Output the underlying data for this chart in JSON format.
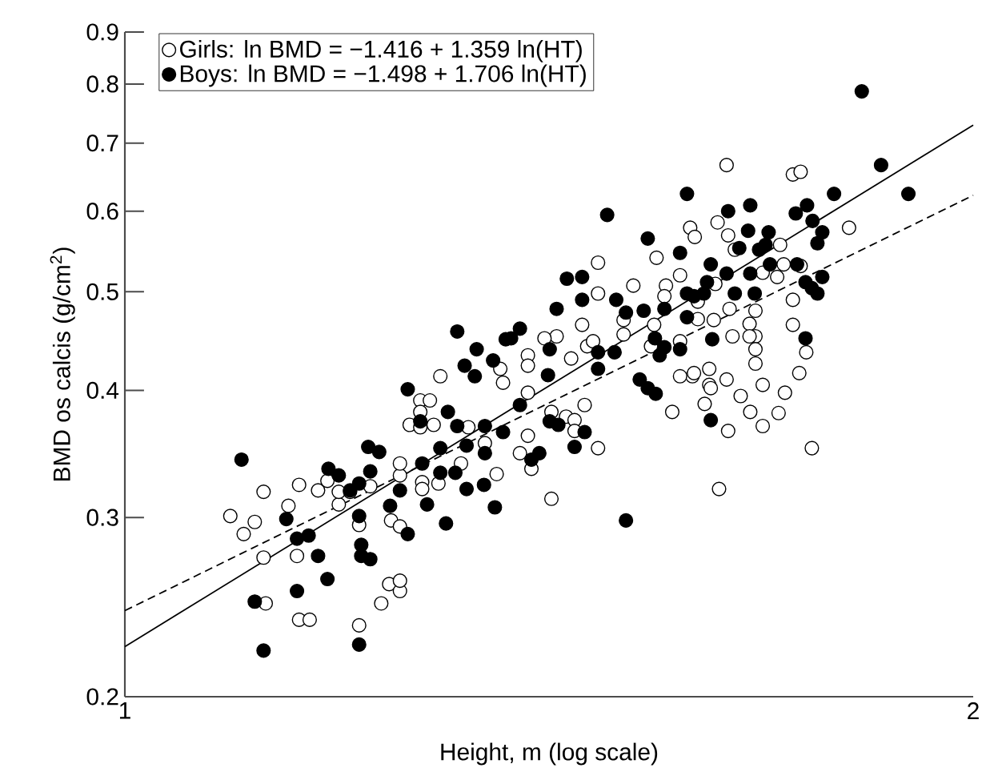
{
  "chart_data": {
    "type": "scatter",
    "xlabel": "Height, m (log scale)",
    "ylabel": "BMD os calcis (g/cm$^{2}$)",
    "log": "xy",
    "xlim": [
      1,
      2
    ],
    "ylim": [
      0.2,
      0.9
    ],
    "xticks": [
      1,
      2
    ],
    "yticks": [
      0.2,
      0.3,
      0.4,
      0.5,
      0.6,
      0.7,
      0.8,
      0.9
    ],
    "legend": "top left",
    "marker": "circle",
    "series": [
      {
        "name": "Girls: ln BMD = −1.416 + 1.359 ln(HT)",
        "color": "#ffffff",
        "x": [
          1.09,
          1.102,
          1.112,
          1.12,
          1.12,
          1.122,
          1.143,
          1.153,
          1.151,
          1.153,
          1.163,
          1.171,
          1.18,
          1.191,
          1.191,
          1.202,
          1.211,
          1.211,
          1.222,
          1.233,
          1.241,
          1.252,
          1.252,
          1.243,
          1.252,
          1.252,
          1.252,
          1.262,
          1.273,
          1.273,
          1.273,
          1.283,
          1.287,
          1.275,
          1.275,
          1.294,
          1.292,
          1.316,
          1.324,
          1.355,
          1.359,
          1.342,
          1.362,
          1.635,
          1.726,
          1.737,
          1.807,
          1.623,
          1.587,
          1.593,
          1.637,
          1.646,
          1.708,
          1.713,
          1.737,
          1.704,
          1.726,
          1.472,
          1.515,
          1.544,
          1.556,
          1.554,
          1.574,
          1.597,
          1.62,
          1.684,
          1.472,
          1.453,
          1.423,
          1.409,
          1.39,
          1.39,
          1.44,
          1.459,
          1.466,
          1.503,
          1.503,
          1.537,
          1.541,
          1.574,
          1.597,
          1.618,
          1.639,
          1.643,
          1.666,
          1.674,
          1.674,
          1.674,
          1.674,
          1.666,
          1.726,
          1.745,
          1.735,
          1.684,
          1.59,
          1.612,
          1.612,
          1.635,
          1.654,
          1.39,
          1.39,
          1.381,
          1.394,
          1.417,
          1.417,
          1.434,
          1.444,
          1.444,
          1.456,
          1.472,
          1.564,
          1.574,
          1.592,
          1.606,
          1.614,
          1.637,
          1.667,
          1.684,
          1.706,
          1.715,
          1.753,
          1.625
        ],
        "values": [
          0.301,
          0.289,
          0.297,
          0.318,
          0.274,
          0.247,
          0.308,
          0.323,
          0.275,
          0.238,
          0.238,
          0.319,
          0.326,
          0.309,
          0.318,
          0.318,
          0.295,
          0.235,
          0.322,
          0.247,
          0.258,
          0.254,
          0.26,
          0.298,
          0.294,
          0.33,
          0.339,
          0.37,
          0.391,
          0.381,
          0.368,
          0.391,
          0.37,
          0.325,
          0.32,
          0.413,
          0.324,
          0.339,
          0.368,
          0.331,
          0.42,
          0.355,
          0.407,
          0.666,
          0.652,
          0.656,
          0.578,
          0.585,
          0.578,
          0.566,
          0.568,
          0.55,
          0.556,
          0.532,
          0.53,
          0.517,
          0.491,
          0.534,
          0.507,
          0.54,
          0.507,
          0.495,
          0.519,
          0.489,
          0.509,
          0.522,
          0.498,
          0.464,
          0.452,
          0.45,
          0.433,
          0.423,
          0.43,
          0.442,
          0.447,
          0.469,
          0.454,
          0.442,
          0.464,
          0.447,
          0.47,
          0.469,
          0.481,
          0.452,
          0.465,
          0.479,
          0.452,
          0.439,
          0.425,
          0.452,
          0.464,
          0.436,
          0.416,
          0.405,
          0.413,
          0.42,
          0.405,
          0.41,
          0.395,
          0.398,
          0.361,
          0.347,
          0.335,
          0.381,
          0.313,
          0.377,
          0.374,
          0.365,
          0.387,
          0.351,
          0.381,
          0.413,
          0.416,
          0.388,
          0.402,
          0.365,
          0.381,
          0.369,
          0.38,
          0.398,
          0.351,
          0.32
        ]
      },
      {
        "name": "Boys: ln BMD = −1.498 + 1.706 ln(HT)",
        "color": "#000000",
        "x": [
          1.1,
          1.112,
          1.12,
          1.141,
          1.151,
          1.151,
          1.162,
          1.171,
          1.18,
          1.181,
          1.191,
          1.202,
          1.211,
          1.211,
          1.213,
          1.213,
          1.222,
          1.222,
          1.22,
          1.231,
          1.211,
          1.242,
          1.252,
          1.26,
          1.26,
          1.273,
          1.275,
          1.28,
          1.294,
          1.294,
          1.3,
          1.302,
          1.31,
          1.312,
          1.322,
          1.322,
          1.331,
          1.341,
          1.342,
          1.342,
          1.353,
          1.362,
          1.312,
          1.333,
          1.32,
          1.351,
          1.365,
          1.826,
          1.855,
          1.897,
          1.785,
          1.746,
          1.73,
          1.754,
          1.768,
          1.761,
          1.667,
          1.637,
          1.583,
          1.483,
          1.533,
          1.574,
          1.614,
          1.635,
          1.664,
          1.692,
          1.688,
          1.679,
          1.652,
          1.694,
          1.667,
          1.732,
          1.744,
          1.753,
          1.761,
          1.768,
          1.646,
          1.609,
          1.605,
          1.583,
          1.592,
          1.673,
          1.583,
          1.616,
          1.574,
          1.554,
          1.548,
          1.542,
          1.528,
          1.506,
          1.494,
          1.554,
          1.453,
          1.435,
          1.453,
          1.423,
          1.381,
          1.371,
          1.415,
          1.413,
          1.472,
          1.472,
          1.492,
          1.523,
          1.533,
          1.543,
          1.744,
          1.381,
          1.394,
          1.403,
          1.415,
          1.425,
          1.444,
          1.456,
          1.614,
          1.506
        ],
        "values": [
          0.342,
          0.248,
          0.222,
          0.299,
          0.254,
          0.286,
          0.288,
          0.275,
          0.261,
          0.335,
          0.33,
          0.319,
          0.324,
          0.301,
          0.282,
          0.275,
          0.273,
          0.333,
          0.352,
          0.348,
          0.225,
          0.308,
          0.319,
          0.289,
          0.401,
          0.373,
          0.339,
          0.309,
          0.332,
          0.351,
          0.296,
          0.381,
          0.332,
          0.369,
          0.32,
          0.353,
          0.413,
          0.323,
          0.347,
          0.369,
          0.307,
          0.364,
          0.457,
          0.439,
          0.423,
          0.428,
          0.449,
          0.787,
          0.666,
          0.624,
          0.624,
          0.608,
          0.597,
          0.587,
          0.572,
          0.558,
          0.608,
          0.6,
          0.624,
          0.595,
          0.564,
          0.546,
          0.532,
          0.521,
          0.574,
          0.572,
          0.556,
          0.55,
          0.552,
          0.532,
          0.521,
          0.532,
          0.511,
          0.504,
          0.498,
          0.517,
          0.498,
          0.511,
          0.498,
          0.498,
          0.495,
          0.498,
          0.472,
          0.449,
          0.439,
          0.441,
          0.433,
          0.45,
          0.479,
          0.477,
          0.491,
          0.481,
          0.517,
          0.515,
          0.491,
          0.481,
          0.46,
          0.45,
          0.439,
          0.414,
          0.436,
          0.42,
          0.436,
          0.41,
          0.402,
          0.397,
          0.45,
          0.387,
          0.342,
          0.347,
          0.373,
          0.37,
          0.352,
          0.364,
          0.374,
          0.298
        ]
      },
      {
        "type": "line",
        "color": "#000000",
        "marker": "none",
        "line_style": "dashed",
        "x": [
          1,
          2
        ],
        "values": [
          0.243,
          0.622
        ]
      },
      {
        "type": "line",
        "color": "#000000",
        "marker": "none",
        "line_style": "solid",
        "x": [
          1,
          2
        ],
        "values": [
          0.224,
          0.729
        ]
      }
    ]
  }
}
